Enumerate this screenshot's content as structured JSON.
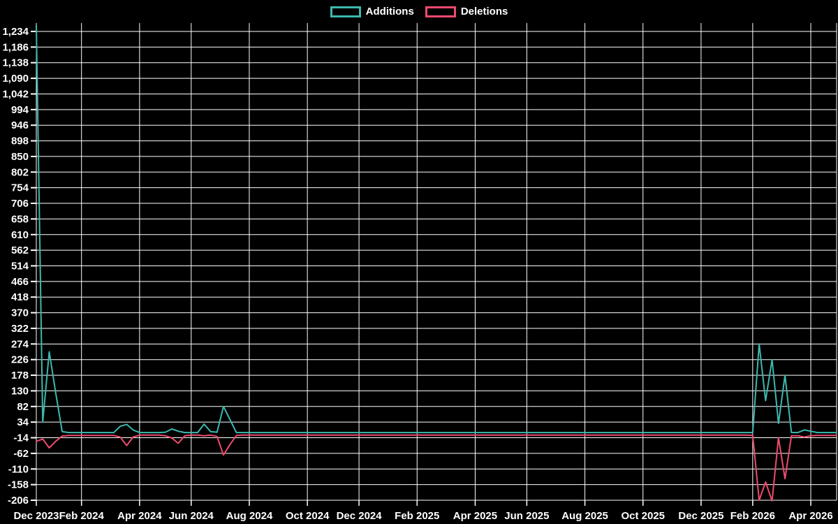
{
  "legend": {
    "items": [
      {
        "label": "Additions"
      },
      {
        "label": "Deletions"
      }
    ]
  },
  "chart_data": {
    "type": "line",
    "title": "",
    "xlabel": "",
    "ylabel": "",
    "background_color": "#000000",
    "grid_color": "#ffffff",
    "legend_position": "top-center",
    "x_axis": {
      "tick_labels": [
        "Dec 2023",
        "Feb 2024",
        "Apr 2024",
        "Jun 2024",
        "Aug 2024",
        "Oct 2024",
        "Dec 2024",
        "Feb 2025",
        "Apr 2025",
        "Jun 2025",
        "Aug 2025",
        "Oct 2025",
        "Dec 2025",
        "Feb 2026",
        "Apr 2026"
      ],
      "tick_weeks": [
        0,
        7,
        16,
        24,
        33,
        42,
        50,
        59,
        68,
        76,
        85,
        94,
        103,
        111,
        120
      ],
      "total_weeks": 125
    },
    "y_axis": {
      "max": 1234,
      "min": -206,
      "step": 48,
      "tick_labels": [
        "1,234",
        "1,186",
        "1,138",
        "1,090",
        "1,042",
        "994",
        "946",
        "898",
        "850",
        "802",
        "754",
        "706",
        "658",
        "610",
        "562",
        "514",
        "466",
        "418",
        "370",
        "322",
        "274",
        "226",
        "178",
        "130",
        "82",
        "34",
        "-14",
        "-62",
        "-110",
        "-158",
        "-206"
      ]
    },
    "series": [
      {
        "name": "Additions",
        "color": "#3db8ae",
        "values": [
          1252,
          34,
          250,
          125,
          5,
          2,
          2,
          2,
          2,
          2,
          2,
          2,
          2,
          21,
          27,
          10,
          2,
          2,
          2,
          2,
          3,
          13,
          6,
          2,
          2,
          2,
          28,
          5,
          3,
          82,
          42,
          2,
          2,
          2,
          2,
          2,
          2,
          2,
          2,
          2,
          2,
          2,
          2,
          2,
          2,
          2,
          2,
          2,
          2,
          2,
          2,
          2,
          2,
          2,
          2,
          2,
          2,
          2,
          2,
          2,
          2,
          2,
          2,
          2,
          2,
          2,
          2,
          2,
          2,
          2,
          2,
          2,
          2,
          2,
          2,
          2,
          2,
          2,
          2,
          2,
          2,
          2,
          2,
          2,
          2,
          2,
          2,
          2,
          2,
          2,
          2,
          2,
          2,
          2,
          2,
          2,
          2,
          2,
          2,
          2,
          2,
          2,
          2,
          2,
          2,
          2,
          2,
          2,
          2,
          2,
          2,
          2,
          274,
          100,
          226,
          30,
          178,
          2,
          2,
          10,
          6,
          2,
          2,
          2,
          2
        ]
      },
      {
        "name": "Deletions",
        "color": "#ef4a6e",
        "values": [
          -25,
          -18,
          -45,
          -25,
          -9,
          -7,
          -7,
          -7,
          -7,
          -7,
          -7,
          -7,
          -7,
          -12,
          -38,
          -12,
          -6,
          -6,
          -6,
          -6,
          -8,
          -15,
          -31,
          -8,
          -6,
          -6,
          -8,
          -6,
          -10,
          -67,
          -35,
          -7,
          -6,
          -6,
          -6,
          -6,
          -6,
          -6,
          -6,
          -6,
          -6,
          -6,
          -6,
          -6,
          -6,
          -6,
          -6,
          -6,
          -6,
          -6,
          -6,
          -6,
          -6,
          -6,
          -6,
          -6,
          -6,
          -6,
          -6,
          -6,
          -6,
          -6,
          -6,
          -6,
          -6,
          -6,
          -6,
          -6,
          -6,
          -6,
          -6,
          -6,
          -6,
          -6,
          -6,
          -6,
          -6,
          -6,
          -6,
          -6,
          -6,
          -6,
          -6,
          -6,
          -6,
          -6,
          -6,
          -6,
          -6,
          -6,
          -6,
          -6,
          -6,
          -6,
          -6,
          -6,
          -6,
          -6,
          -6,
          -6,
          -6,
          -6,
          -6,
          -6,
          -6,
          -6,
          -6,
          -6,
          -6,
          -6,
          -6,
          -7,
          -206,
          -150,
          -208,
          -14,
          -140,
          -8,
          -8,
          -12,
          -8,
          -7,
          -7,
          -7,
          -7
        ]
      }
    ]
  }
}
